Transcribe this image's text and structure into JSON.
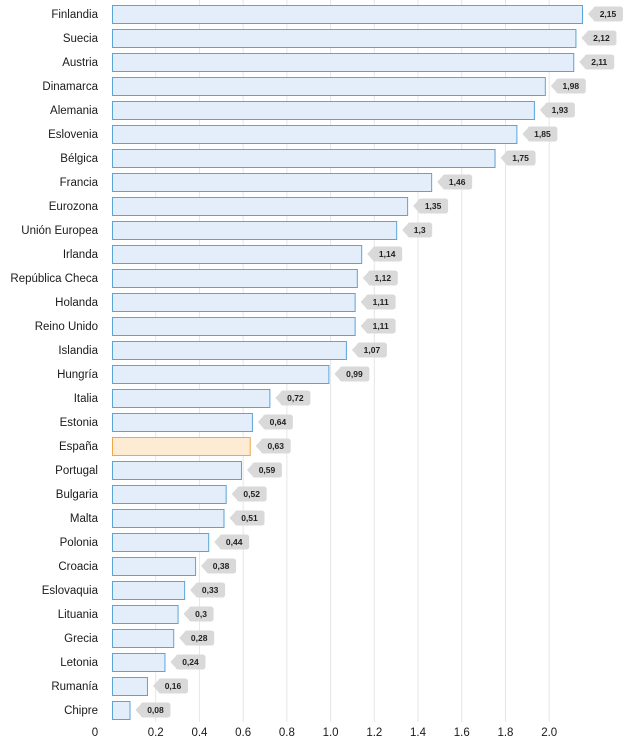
{
  "chart_data": {
    "type": "bar",
    "orientation": "horizontal",
    "categories": [
      "Finlandia",
      "Suecia",
      "Austria",
      "Dinamarca",
      "Alemania",
      "Eslovenia",
      "Bélgica",
      "Francia",
      "Eurozona",
      "Unión Europea",
      "Irlanda",
      "República Checa",
      "Holanda",
      "Reino Unido",
      "Islandia",
      "Hungría",
      "Italia",
      "Estonia",
      "España",
      "Portugal",
      "Bulgaria",
      "Malta",
      "Polonia",
      "Croacia",
      "Eslovaquia",
      "Lituania",
      "Grecia",
      "Letonia",
      "Rumanía",
      "Chipre"
    ],
    "values": [
      2.15,
      2.12,
      2.11,
      1.98,
      1.93,
      1.85,
      1.75,
      1.46,
      1.35,
      1.3,
      1.14,
      1.12,
      1.11,
      1.11,
      1.07,
      0.99,
      0.72,
      0.64,
      0.63,
      0.59,
      0.52,
      0.51,
      0.44,
      0.38,
      0.33,
      0.3,
      0.28,
      0.24,
      0.16,
      0.08
    ],
    "value_labels": [
      "2,15",
      "2,12",
      "2,11",
      "1,98",
      "1,93",
      "1,85",
      "1,75",
      "1,46",
      "1,35",
      "1,3",
      "1,14",
      "1,12",
      "1,11",
      "1,11",
      "1,07",
      "0,99",
      "0,72",
      "0,64",
      "0,63",
      "0,59",
      "0,52",
      "0,51",
      "0,44",
      "0,38",
      "0,33",
      "0,3",
      "0,28",
      "0,24",
      "0,16",
      "0,08"
    ],
    "highlight_category": "España",
    "xlim": [
      0,
      2.2
    ],
    "x_ticks": [
      0,
      0.2,
      0.4,
      0.6,
      0.8,
      1.0,
      1.2,
      1.4,
      1.6,
      1.8,
      2.0
    ],
    "x_tick_labels": [
      "0",
      "0.2",
      "0.4",
      "0.6",
      "0.8",
      "1.0",
      "1.2",
      "1.4",
      "1.6",
      "1.8",
      "2.0"
    ],
    "grid": "vertical",
    "title": "",
    "xlabel": "",
    "ylabel": ""
  },
  "colors": {
    "bar_fill": "#e3eefa",
    "bar_stroke": "#5ba4d8",
    "highlight_fill": "#fdebd3",
    "highlight_stroke": "#f0a64a",
    "label_bubble": "#d9d9d9",
    "gridline": "#e6e6e6"
  }
}
